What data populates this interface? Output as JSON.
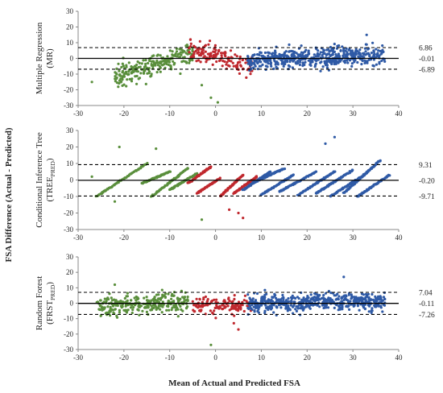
{
  "figure": {
    "ylabel": "FSA Difference (Actual - Predicted)",
    "xlabel": "Mean of Actual and Predicted FSA"
  },
  "colors": {
    "green": "#5a8f3c",
    "red": "#c0282e",
    "blue": "#2f5aa6"
  },
  "chart_data": [
    {
      "type": "scatter",
      "panel_label": [
        "Multiple Regression",
        "(MR)"
      ],
      "xlim": [
        -30,
        40
      ],
      "ylim": [
        -30,
        30
      ],
      "xticks": [
        "-30",
        "-20",
        "-10",
        "0",
        "10",
        "20",
        "30",
        "40"
      ],
      "yticks": [
        "30",
        "20",
        "10",
        "0",
        "-10",
        "-20",
        "-30"
      ],
      "ref_lines": [
        {
          "value": 6.86,
          "label": "6.86",
          "style": "dashed"
        },
        {
          "value": -0.01,
          "label": "-0.01",
          "style": "solid"
        },
        {
          "value": -6.89,
          "label": "-6.89",
          "style": "dashed"
        }
      ],
      "clusters": [
        {
          "color": "green",
          "x_range": [
            -22,
            -5
          ],
          "trend": [
            -12,
            4
          ],
          "spread": 3.2,
          "count": 240
        },
        {
          "color": "red",
          "x_range": [
            -6,
            8
          ],
          "trend": [
            6,
            -5
          ],
          "spread": 3.0,
          "count": 150
        },
        {
          "color": "blue",
          "x_range": [
            7,
            37
          ],
          "trend": [
            -1,
            2
          ],
          "spread": 3.0,
          "count": 520
        }
      ],
      "outliers": [
        {
          "x": -1,
          "y": -25,
          "color": "green"
        },
        {
          "x": 0.5,
          "y": -28,
          "color": "green"
        },
        {
          "x": -3,
          "y": -17,
          "color": "green"
        },
        {
          "x": 33,
          "y": 15,
          "color": "blue"
        },
        {
          "x": -27,
          "y": -15,
          "color": "green"
        }
      ]
    },
    {
      "type": "scatter",
      "panel_label": [
        "Conditional Inference Tree",
        "(TREE_PRED)"
      ],
      "xlim": [
        -30,
        40
      ],
      "ylim": [
        -30,
        30
      ],
      "xticks": [
        "-30",
        "-20",
        "-10",
        "0",
        "10",
        "20",
        "30",
        "40"
      ],
      "yticks": [
        "30",
        "20",
        "10",
        "0",
        "-10",
        "-20",
        "-30"
      ],
      "ref_lines": [
        {
          "value": 9.31,
          "label": "9.31",
          "style": "dashed"
        },
        {
          "value": -0.2,
          "label": "-0.20",
          "style": "solid"
        },
        {
          "value": -9.71,
          "label": "-9.71",
          "style": "dashed"
        }
      ],
      "diagonal_bands": [
        {
          "color": "green",
          "x_start": -26,
          "x_end": -15,
          "y_start": -10,
          "y_end": 10
        },
        {
          "color": "green",
          "x_start": -16,
          "x_end": -10,
          "y_start": -2,
          "y_end": 5
        },
        {
          "color": "green",
          "x_start": -14,
          "x_end": -6,
          "y_start": -10,
          "y_end": 7
        },
        {
          "color": "green",
          "x_start": -10,
          "x_end": -4,
          "y_start": -6,
          "y_end": 4
        },
        {
          "color": "red",
          "x_start": -6,
          "x_end": -1,
          "y_start": -2,
          "y_end": 8
        },
        {
          "color": "red",
          "x_start": -4,
          "x_end": 1,
          "y_start": -8,
          "y_end": 1
        },
        {
          "color": "red",
          "x_start": 1,
          "x_end": 6,
          "y_start": -10,
          "y_end": 3
        },
        {
          "color": "red",
          "x_start": 4,
          "x_end": 9,
          "y_start": -8,
          "y_end": 2
        },
        {
          "color": "blue",
          "x_start": 6,
          "x_end": 12,
          "y_start": -6,
          "y_end": 5
        },
        {
          "color": "blue",
          "x_start": 8,
          "x_end": 15,
          "y_start": -2,
          "y_end": 7
        },
        {
          "color": "blue",
          "x_start": 10,
          "x_end": 17,
          "y_start": -9,
          "y_end": 3
        },
        {
          "color": "blue",
          "x_start": 14,
          "x_end": 22,
          "y_start": -7,
          "y_end": 5
        },
        {
          "color": "blue",
          "x_start": 18,
          "x_end": 26,
          "y_start": -9,
          "y_end": 5
        },
        {
          "color": "blue",
          "x_start": 22,
          "x_end": 30,
          "y_start": -8,
          "y_end": 6
        },
        {
          "color": "blue",
          "x_start": 25,
          "x_end": 33,
          "y_start": -10,
          "y_end": 4
        },
        {
          "color": "blue",
          "x_start": 28,
          "x_end": 36,
          "y_start": -8,
          "y_end": 12
        },
        {
          "color": "blue",
          "x_start": 31,
          "x_end": 38,
          "y_start": -10,
          "y_end": 3
        }
      ],
      "outliers": [
        {
          "x": -21,
          "y": 20,
          "color": "green"
        },
        {
          "x": -13,
          "y": 19,
          "color": "green"
        },
        {
          "x": -3,
          "y": -24,
          "color": "green"
        },
        {
          "x": -27,
          "y": 2,
          "color": "green"
        },
        {
          "x": -22,
          "y": -13,
          "color": "green"
        },
        {
          "x": 6,
          "y": -23,
          "color": "red"
        },
        {
          "x": 5,
          "y": -20,
          "color": "red"
        },
        {
          "x": 26,
          "y": 26,
          "color": "blue"
        },
        {
          "x": 24,
          "y": 22,
          "color": "blue"
        },
        {
          "x": 3,
          "y": -18,
          "color": "red"
        }
      ]
    },
    {
      "type": "scatter",
      "panel_label": [
        "Random Forest",
        "(FRST_PRED)"
      ],
      "xlim": [
        -30,
        40
      ],
      "ylim": [
        -30,
        30
      ],
      "xticks": [
        "-30",
        "-20",
        "-10",
        "0",
        "10",
        "20",
        "30",
        "40"
      ],
      "yticks": [
        "30",
        "20",
        "10",
        "0",
        "-10",
        "-20",
        "-30"
      ],
      "ref_lines": [
        {
          "value": 7.04,
          "label": "7.04",
          "style": "dashed"
        },
        {
          "value": -0.11,
          "label": "-0.11",
          "style": "solid"
        },
        {
          "value": -7.26,
          "label": "-7.26",
          "style": "dashed"
        }
      ],
      "clusters": [
        {
          "color": "green",
          "x_range": [
            -26,
            -6
          ],
          "trend": [
            -2,
            1
          ],
          "spread": 3.2,
          "count": 300
        },
        {
          "color": "red",
          "x_range": [
            -5,
            8
          ],
          "trend": [
            -1,
            -1
          ],
          "spread": 2.6,
          "count": 130
        },
        {
          "color": "blue",
          "x_range": [
            7,
            37
          ],
          "trend": [
            0,
            1
          ],
          "spread": 2.8,
          "count": 520
        }
      ],
      "outliers": [
        {
          "x": -1,
          "y": -27,
          "color": "green"
        },
        {
          "x": 4,
          "y": -13,
          "color": "red"
        },
        {
          "x": 5,
          "y": -17,
          "color": "red"
        },
        {
          "x": 28,
          "y": 17,
          "color": "blue"
        },
        {
          "x": -22,
          "y": 12,
          "color": "green"
        }
      ]
    }
  ]
}
